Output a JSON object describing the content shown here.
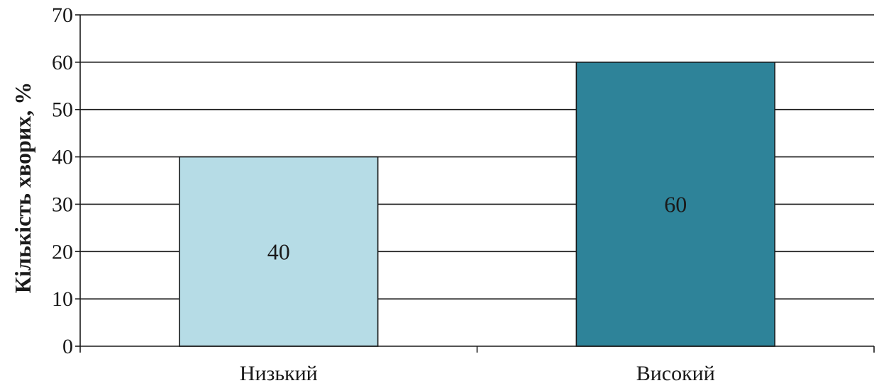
{
  "chart_data": {
    "type": "bar",
    "title": "",
    "xlabel": "",
    "ylabel": "Кількість хворих, %",
    "categories": [
      "Низький",
      "Високий"
    ],
    "values": [
      40,
      60
    ],
    "data_labels": [
      "40",
      "60"
    ],
    "bar_colors": [
      "#b6dce6",
      "#2e8399"
    ],
    "ylim": [
      0,
      70
    ],
    "yticks": [
      0,
      10,
      20,
      30,
      40,
      50,
      60,
      70
    ],
    "grid": true,
    "legend": "none"
  }
}
